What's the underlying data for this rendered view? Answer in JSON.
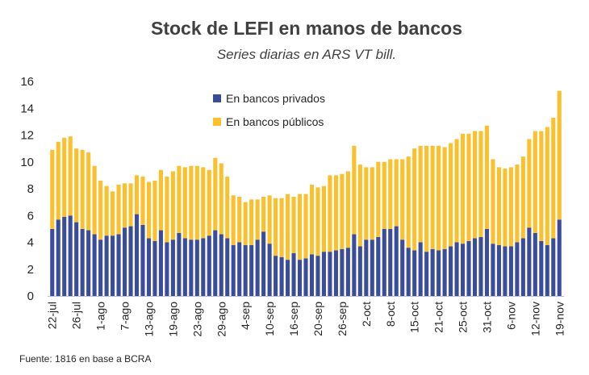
{
  "chart_data": {
    "type": "bar",
    "stacked": true,
    "title": "Stock de LEFI en manos de bancos",
    "subtitle": "Series diarias en ARS VT bill.",
    "xlabel": "",
    "ylabel": "",
    "ylim": [
      0,
      16
    ],
    "yticks": [
      "0",
      "2",
      "4",
      "6",
      "8",
      "10",
      "12",
      "14",
      "16"
    ],
    "x_tick_labels": [
      "22-jul",
      "26-jul",
      "1-ago",
      "7-ago",
      "13-ago",
      "19-ago",
      "23-ago",
      "29-ago",
      "4-sep",
      "10-sep",
      "16-sep",
      "20-sep",
      "26-sep",
      "2-oct",
      "8-oct",
      "15-oct",
      "21-oct",
      "25-oct",
      "31-oct",
      "6-nov",
      "12-nov",
      "19-nov"
    ],
    "x_tick_every": 4,
    "grid": false,
    "legend_position": "top-center",
    "series": [
      {
        "name": "En bancos privados",
        "color": "#3B4D99",
        "values": [
          5.0,
          5.7,
          5.9,
          6.0,
          5.5,
          5.0,
          4.9,
          4.6,
          4.2,
          4.5,
          4.5,
          4.6,
          5.1,
          5.2,
          6.1,
          5.3,
          4.3,
          4.1,
          4.9,
          4.0,
          4.2,
          4.7,
          4.3,
          4.2,
          4.2,
          4.3,
          4.5,
          4.9,
          4.6,
          4.3,
          3.8,
          4.0,
          3.8,
          3.8,
          4.2,
          4.8,
          3.9,
          3.0,
          2.9,
          2.7,
          3.2,
          2.7,
          2.8,
          3.1,
          3.0,
          3.3,
          3.3,
          3.4,
          3.5,
          3.6,
          4.6,
          3.7,
          4.2,
          4.2,
          4.4,
          5.0,
          5.0,
          5.2,
          4.2,
          3.6,
          3.4,
          4.0,
          3.3,
          3.5,
          3.4,
          3.5,
          3.7,
          4.0,
          3.9,
          4.1,
          4.3,
          4.4,
          5.0,
          3.9,
          3.8,
          3.7,
          3.7,
          4.0,
          4.3,
          5.1,
          4.7,
          4.1,
          3.8,
          4.3,
          5.7
        ]
      },
      {
        "name": "En bancos públicos",
        "color": "#FBC02D",
        "values": [
          5.9,
          5.8,
          5.9,
          5.9,
          5.5,
          5.9,
          5.8,
          5.1,
          4.4,
          3.7,
          3.3,
          3.7,
          3.3,
          3.2,
          2.9,
          3.6,
          4.2,
          4.5,
          4.5,
          4.9,
          5.1,
          5.0,
          5.3,
          5.5,
          5.5,
          5.3,
          4.9,
          5.4,
          5.3,
          4.6,
          3.7,
          3.4,
          3.2,
          3.4,
          3.0,
          2.6,
          3.6,
          4.3,
          4.4,
          4.9,
          4.2,
          4.9,
          4.8,
          5.2,
          5.1,
          4.9,
          5.7,
          5.6,
          5.6,
          5.7,
          6.6,
          6.1,
          5.4,
          5.4,
          5.6,
          5.0,
          5.2,
          5.0,
          6.0,
          6.8,
          7.6,
          7.2,
          7.9,
          7.7,
          7.8,
          7.6,
          7.7,
          7.7,
          8.2,
          8.0,
          8.0,
          7.9,
          7.7,
          6.3,
          5.8,
          5.8,
          5.9,
          5.8,
          6.1,
          6.6,
          7.6,
          8.2,
          8.8,
          9.0,
          9.6
        ]
      }
    ]
  },
  "footer": {
    "source": "Fuente: 1816 en base a BCRA"
  }
}
